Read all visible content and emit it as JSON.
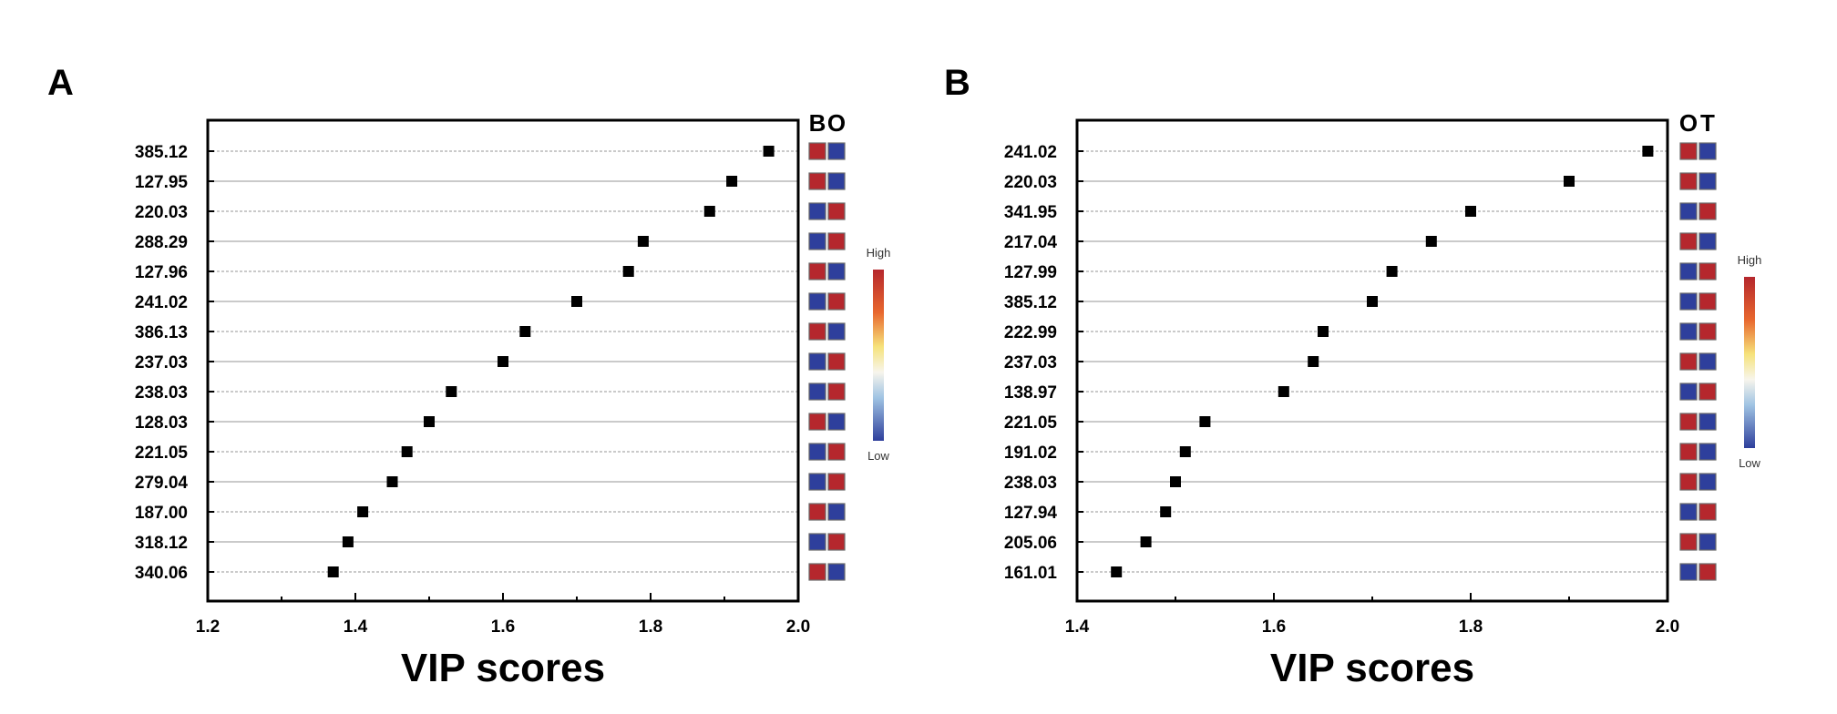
{
  "colors": {
    "high": "#b5272d",
    "low": "#2e3f9c",
    "marker": "#000000"
  },
  "chart_data": [
    {
      "panel_label": "A",
      "type": "scatter",
      "xlabel": "VIP scores",
      "xlim": [
        1.2,
        2.0
      ],
      "xticks": [
        "1.2",
        "1.4",
        "1.6",
        "1.8",
        "2.0"
      ],
      "categories": [
        "385.12",
        "127.95",
        "220.03",
        "288.29",
        "127.96",
        "241.02",
        "386.13",
        "237.03",
        "238.03",
        "128.03",
        "221.05",
        "279.04",
        "187.00",
        "318.12",
        "340.06"
      ],
      "values": [
        1.96,
        1.91,
        1.88,
        1.79,
        1.77,
        1.7,
        1.63,
        1.6,
        1.53,
        1.5,
        1.47,
        1.45,
        1.41,
        1.39,
        1.37
      ],
      "heatmap": {
        "columns": [
          "B",
          "O"
        ],
        "cells": [
          [
            "high",
            "low"
          ],
          [
            "high",
            "low"
          ],
          [
            "low",
            "high"
          ],
          [
            "low",
            "high"
          ],
          [
            "high",
            "low"
          ],
          [
            "low",
            "high"
          ],
          [
            "high",
            "low"
          ],
          [
            "low",
            "high"
          ],
          [
            "low",
            "high"
          ],
          [
            "high",
            "low"
          ],
          [
            "low",
            "high"
          ],
          [
            "low",
            "high"
          ],
          [
            "high",
            "low"
          ],
          [
            "low",
            "high"
          ],
          [
            "high",
            "low"
          ]
        ]
      },
      "colorbar": {
        "high_label": "High",
        "low_label": "Low"
      }
    },
    {
      "panel_label": "B",
      "type": "scatter",
      "xlabel": "VIP scores",
      "xlim": [
        1.4,
        2.0
      ],
      "xticks": [
        "1.4",
        "1.6",
        "1.8",
        "2.0"
      ],
      "categories": [
        "241.02",
        "220.03",
        "341.95",
        "217.04",
        "127.99",
        "385.12",
        "222.99",
        "237.03",
        "138.97",
        "221.05",
        "191.02",
        "238.03",
        "127.94",
        "205.06",
        "161.01"
      ],
      "values": [
        1.98,
        1.9,
        1.8,
        1.76,
        1.72,
        1.7,
        1.65,
        1.64,
        1.61,
        1.53,
        1.51,
        1.5,
        1.49,
        1.47,
        1.44
      ],
      "heatmap": {
        "columns": [
          "O",
          "T"
        ],
        "cells": [
          [
            "high",
            "low"
          ],
          [
            "high",
            "low"
          ],
          [
            "low",
            "high"
          ],
          [
            "high",
            "low"
          ],
          [
            "low",
            "high"
          ],
          [
            "low",
            "high"
          ],
          [
            "low",
            "high"
          ],
          [
            "high",
            "low"
          ],
          [
            "low",
            "high"
          ],
          [
            "high",
            "low"
          ],
          [
            "high",
            "low"
          ],
          [
            "high",
            "low"
          ],
          [
            "low",
            "high"
          ],
          [
            "high",
            "low"
          ],
          [
            "low",
            "high"
          ]
        ]
      },
      "colorbar": {
        "high_label": "High",
        "low_label": "Low"
      }
    }
  ]
}
